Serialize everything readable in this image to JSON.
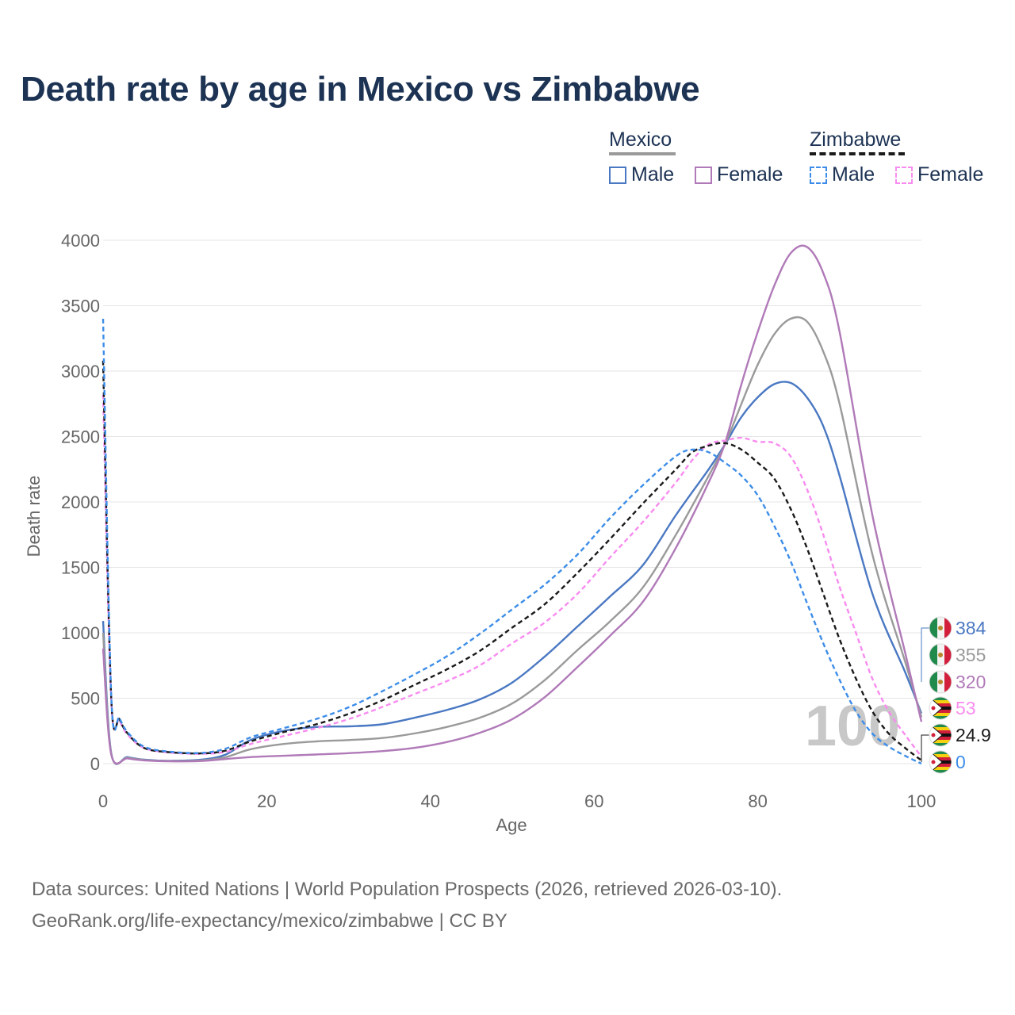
{
  "title": "Death rate by age in Mexico vs Zimbabwe",
  "legend": {
    "groups": [
      {
        "country": "Mexico",
        "line_color": "#9a9a9a",
        "line_style": "solid"
      },
      {
        "country": "Zimbabwe",
        "line_color": "#1a1a1a",
        "line_style": "dashed"
      }
    ],
    "items": [
      {
        "label": "Male",
        "color": "#4a78c2",
        "style": "solid"
      },
      {
        "label": "Female",
        "color": "#b07ab8",
        "style": "solid"
      },
      {
        "label": "Male",
        "color": "#3d8de8",
        "style": "dashed"
      },
      {
        "label": "Female",
        "color": "#f88cf0",
        "style": "dashed"
      }
    ]
  },
  "watermark": "100",
  "footer": {
    "line1": "Data sources: United Nations | World Population Prospects (2026, retrieved 2026-03-10).",
    "line2": "GeoRank.org/life-expectancy/mexico/zimbabwe | CC BY"
  },
  "end_labels": [
    {
      "text": "384",
      "color": "#4a78c2",
      "flag": "mexico-flag-icon"
    },
    {
      "text": "355",
      "color": "#9a9a9a",
      "flag": "mexico-flag-icon"
    },
    {
      "text": "320",
      "color": "#b07ab8",
      "flag": "mexico-flag-icon"
    },
    {
      "text": "53",
      "color": "#f88cf0",
      "flag": "zimbabwe-flag-icon"
    },
    {
      "text": "24.9",
      "color": "#1a1a1a",
      "flag": "zimbabwe-flag-icon"
    },
    {
      "text": "0",
      "color": "#3d8de8",
      "flag": "zimbabwe-flag-icon"
    }
  ],
  "chart_data": {
    "type": "line",
    "title": "Death rate by age in Mexico vs Zimbabwe",
    "xlabel": "Age",
    "ylabel": "Death rate",
    "xlim": [
      0,
      100
    ],
    "ylim": [
      0,
      4000
    ],
    "xticks": [
      0,
      20,
      40,
      60,
      80,
      100
    ],
    "yticks": [
      0,
      500,
      1000,
      1500,
      2000,
      2500,
      3000,
      3500,
      4000
    ],
    "grid": true,
    "series": [
      {
        "name": "Mexico Male",
        "color": "#4a78c2",
        "dash": false,
        "points": [
          [
            0,
            1090
          ],
          [
            1,
            80
          ],
          [
            3,
            50
          ],
          [
            5,
            30
          ],
          [
            8,
            22
          ],
          [
            12,
            30
          ],
          [
            15,
            70
          ],
          [
            18,
            180
          ],
          [
            22,
            250
          ],
          [
            26,
            280
          ],
          [
            30,
            285
          ],
          [
            34,
            300
          ],
          [
            38,
            350
          ],
          [
            42,
            410
          ],
          [
            46,
            490
          ],
          [
            50,
            620
          ],
          [
            54,
            820
          ],
          [
            58,
            1050
          ],
          [
            62,
            1280
          ],
          [
            66,
            1520
          ],
          [
            70,
            1900
          ],
          [
            74,
            2250
          ],
          [
            76,
            2440
          ],
          [
            78,
            2650
          ],
          [
            80,
            2800
          ],
          [
            82,
            2900
          ],
          [
            84,
            2910
          ],
          [
            86,
            2800
          ],
          [
            88,
            2580
          ],
          [
            90,
            2200
          ],
          [
            94,
            1300
          ],
          [
            98,
            700
          ],
          [
            100,
            384
          ]
        ]
      },
      {
        "name": "Mexico Total",
        "color": "#9a9a9a",
        "dash": false,
        "points": [
          [
            0,
            1000
          ],
          [
            1,
            75
          ],
          [
            3,
            45
          ],
          [
            5,
            28
          ],
          [
            8,
            20
          ],
          [
            12,
            25
          ],
          [
            15,
            50
          ],
          [
            18,
            110
          ],
          [
            22,
            150
          ],
          [
            26,
            170
          ],
          [
            30,
            180
          ],
          [
            34,
            195
          ],
          [
            38,
            230
          ],
          [
            42,
            280
          ],
          [
            46,
            350
          ],
          [
            50,
            460
          ],
          [
            54,
            640
          ],
          [
            58,
            870
          ],
          [
            62,
            1090
          ],
          [
            66,
            1350
          ],
          [
            70,
            1750
          ],
          [
            74,
            2200
          ],
          [
            76,
            2440
          ],
          [
            78,
            2750
          ],
          [
            80,
            3050
          ],
          [
            82,
            3280
          ],
          [
            84,
            3400
          ],
          [
            86,
            3380
          ],
          [
            88,
            3150
          ],
          [
            90,
            2750
          ],
          [
            94,
            1600
          ],
          [
            98,
            780
          ],
          [
            100,
            355
          ]
        ]
      },
      {
        "name": "Mexico Female",
        "color": "#b07ab8",
        "dash": false,
        "points": [
          [
            0,
            880
          ],
          [
            1,
            70
          ],
          [
            3,
            40
          ],
          [
            5,
            25
          ],
          [
            8,
            18
          ],
          [
            12,
            20
          ],
          [
            15,
            35
          ],
          [
            18,
            50
          ],
          [
            22,
            60
          ],
          [
            26,
            70
          ],
          [
            30,
            80
          ],
          [
            34,
            95
          ],
          [
            38,
            120
          ],
          [
            42,
            165
          ],
          [
            46,
            235
          ],
          [
            50,
            340
          ],
          [
            54,
            510
          ],
          [
            58,
            740
          ],
          [
            62,
            980
          ],
          [
            66,
            1240
          ],
          [
            70,
            1650
          ],
          [
            74,
            2150
          ],
          [
            76,
            2450
          ],
          [
            78,
            2900
          ],
          [
            80,
            3300
          ],
          [
            82,
            3650
          ],
          [
            84,
            3900
          ],
          [
            86,
            3950
          ],
          [
            88,
            3750
          ],
          [
            90,
            3300
          ],
          [
            94,
            1900
          ],
          [
            98,
            850
          ],
          [
            100,
            320
          ]
        ]
      },
      {
        "name": "Zimbabwe Female",
        "color": "#f88cf0",
        "dash": true,
        "points": [
          [
            0,
            2820
          ],
          [
            1,
            480
          ],
          [
            2,
            330
          ],
          [
            3,
            220
          ],
          [
            5,
            120
          ],
          [
            8,
            85
          ],
          [
            12,
            75
          ],
          [
            15,
            90
          ],
          [
            18,
            150
          ],
          [
            22,
            210
          ],
          [
            26,
            270
          ],
          [
            30,
            340
          ],
          [
            34,
            430
          ],
          [
            38,
            530
          ],
          [
            42,
            630
          ],
          [
            46,
            750
          ],
          [
            50,
            920
          ],
          [
            54,
            1080
          ],
          [
            58,
            1300
          ],
          [
            62,
            1580
          ],
          [
            66,
            1850
          ],
          [
            70,
            2150
          ],
          [
            72,
            2320
          ],
          [
            74,
            2440
          ],
          [
            76,
            2470
          ],
          [
            78,
            2490
          ],
          [
            80,
            2460
          ],
          [
            82,
            2450
          ],
          [
            84,
            2350
          ],
          [
            86,
            2100
          ],
          [
            88,
            1750
          ],
          [
            90,
            1350
          ],
          [
            92,
            1000
          ],
          [
            94,
            650
          ],
          [
            96,
            400
          ],
          [
            98,
            220
          ],
          [
            100,
            53
          ]
        ]
      },
      {
        "name": "Zimbabwe Total",
        "color": "#1a1a1a",
        "dash": true,
        "points": [
          [
            0,
            3080
          ],
          [
            1,
            500
          ],
          [
            2,
            340
          ],
          [
            3,
            230
          ],
          [
            5,
            120
          ],
          [
            8,
            88
          ],
          [
            12,
            78
          ],
          [
            15,
            100
          ],
          [
            18,
            170
          ],
          [
            22,
            240
          ],
          [
            26,
            300
          ],
          [
            30,
            380
          ],
          [
            34,
            480
          ],
          [
            38,
            600
          ],
          [
            42,
            720
          ],
          [
            46,
            860
          ],
          [
            50,
            1040
          ],
          [
            54,
            1220
          ],
          [
            58,
            1460
          ],
          [
            62,
            1720
          ],
          [
            66,
            1990
          ],
          [
            70,
            2250
          ],
          [
            72,
            2380
          ],
          [
            74,
            2430
          ],
          [
            76,
            2450
          ],
          [
            78,
            2400
          ],
          [
            80,
            2300
          ],
          [
            82,
            2180
          ],
          [
            84,
            1950
          ],
          [
            86,
            1650
          ],
          [
            88,
            1300
          ],
          [
            90,
            950
          ],
          [
            92,
            650
          ],
          [
            94,
            400
          ],
          [
            96,
            230
          ],
          [
            98,
            120
          ],
          [
            100,
            24.9
          ]
        ]
      },
      {
        "name": "Zimbabwe Male",
        "color": "#3d8de8",
        "dash": true,
        "points": [
          [
            0,
            3400
          ],
          [
            1,
            520
          ],
          [
            2,
            350
          ],
          [
            3,
            240
          ],
          [
            5,
            130
          ],
          [
            8,
            92
          ],
          [
            12,
            82
          ],
          [
            15,
            115
          ],
          [
            18,
            200
          ],
          [
            22,
            270
          ],
          [
            26,
            340
          ],
          [
            30,
            430
          ],
          [
            34,
            550
          ],
          [
            38,
            680
          ],
          [
            42,
            820
          ],
          [
            46,
            990
          ],
          [
            50,
            1180
          ],
          [
            54,
            1370
          ],
          [
            58,
            1600
          ],
          [
            62,
            1880
          ],
          [
            66,
            2130
          ],
          [
            70,
            2350
          ],
          [
            72,
            2400
          ],
          [
            74,
            2380
          ],
          [
            76,
            2300
          ],
          [
            78,
            2200
          ],
          [
            80,
            2050
          ],
          [
            82,
            1820
          ],
          [
            84,
            1550
          ],
          [
            86,
            1230
          ],
          [
            88,
            920
          ],
          [
            90,
            640
          ],
          [
            92,
            400
          ],
          [
            94,
            230
          ],
          [
            96,
            130
          ],
          [
            98,
            60
          ],
          [
            100,
            0
          ]
        ]
      }
    ]
  }
}
